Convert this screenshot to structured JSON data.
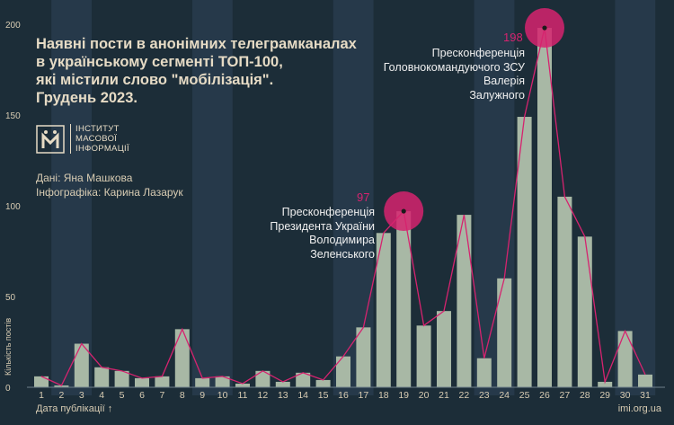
{
  "title": "Наявні пости в анонімних телеграмканалах\nв українському сегменті ТОП-100,\nякі містили слово \"мобілізація\".\nГрудень 2023.",
  "logo": {
    "text": "Інститут\nмасової\nінформації"
  },
  "credits": {
    "data": "Дані: Яна Машкова",
    "infographic": "Інфографіка: Карина Лазарук"
  },
  "annotations": {
    "zelensky": "Пресконференція\nПрезидента України\nВолодимира\nЗеленського",
    "zaluzhny": "Пресконференція\nГоловнокомандуючого ЗСУ\nВалерія\nЗалужного"
  },
  "peaks": {
    "zelensky_value": "97",
    "zaluzhny_value": "198"
  },
  "footer": {
    "xaxis_title": "Дата публікації",
    "yaxis_title": "Кількість постів",
    "source": "imi.org.ua"
  },
  "colors": {
    "background": "#1c2d38",
    "band": "#26394a",
    "bar": "#a8b8a5",
    "line": "#d6236f",
    "text": "#e6dbc5"
  },
  "chart_data": {
    "type": "bar",
    "categories": [
      "1",
      "2",
      "3",
      "4",
      "5",
      "6",
      "7",
      "8",
      "9",
      "10",
      "11",
      "12",
      "13",
      "14",
      "15",
      "16",
      "17",
      "18",
      "19",
      "20",
      "21",
      "22",
      "23",
      "24",
      "25",
      "26",
      "27",
      "28",
      "29",
      "30",
      "31"
    ],
    "values": [
      6,
      1,
      24,
      11,
      9,
      5,
      6,
      32,
      5,
      6,
      2,
      9,
      3,
      8,
      4,
      17,
      33,
      85,
      97,
      34,
      42,
      95,
      16,
      60,
      149,
      198,
      105,
      83,
      3,
      31,
      7
    ],
    "ylim": [
      0,
      200
    ],
    "yticks": [
      0,
      50,
      100,
      150,
      200
    ],
    "xlabel": "Дата публікації",
    "ylabel": "Кількість постів",
    "overlay": "line",
    "grid": false
  }
}
